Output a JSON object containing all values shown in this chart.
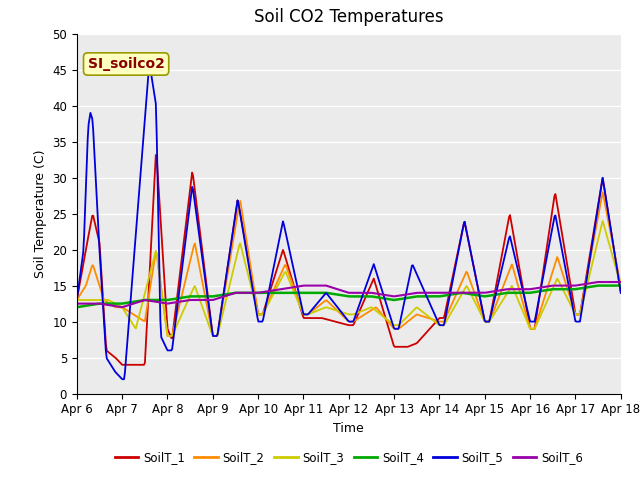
{
  "title": "Soil CO2 Temperatures",
  "xlabel": "Time",
  "ylabel": "Soil Temperature (C)",
  "annotation": "SI_soilco2",
  "ylim": [
    0,
    50
  ],
  "yticks": [
    0,
    5,
    10,
    15,
    20,
    25,
    30,
    35,
    40,
    45,
    50
  ],
  "xtick_labels": [
    "Apr 6",
    "Apr 7",
    "Apr 8",
    "Apr 9",
    "Apr 10",
    "Apr 11",
    "Apr 12",
    "Apr 13",
    "Apr 14",
    "Apr 15",
    "Apr 16",
    "Apr 17",
    "Apr 18"
  ],
  "colors": {
    "SoilT_1": "#cc0000",
    "SoilT_2": "#ff8c00",
    "SoilT_3": "#cccc00",
    "SoilT_4": "#00aa00",
    "SoilT_5": "#0000dd",
    "SoilT_6": "#9900aa"
  },
  "fig_facecolor": "#ffffff",
  "plot_facecolor": "#ebebeb",
  "grid_color": "#ffffff",
  "annotation_facecolor": "#ffffc0",
  "annotation_edgecolor": "#999900",
  "annotation_textcolor": "#880000"
}
